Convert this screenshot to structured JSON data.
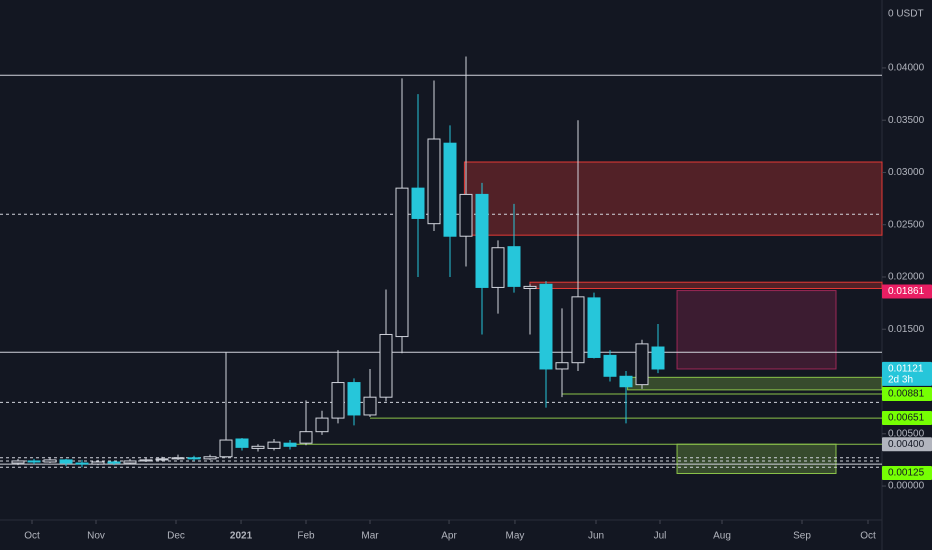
{
  "chart_data": {
    "type": "candlestick",
    "y_axis_label": "0 USDT",
    "up_color": "#d1d4dc",
    "down_color": "#26c6da",
    "series": {
      "open": [
        0.0022,
        0.0024,
        0.0023,
        0.0025,
        0.0022,
        0.0021,
        0.0023,
        0.0022,
        0.0024,
        0.0025,
        0.0026,
        0.0027,
        0.0026,
        0.0028,
        0.0045,
        0.0036,
        0.0036,
        0.0041,
        0.0041,
        0.0052,
        0.0065,
        0.0099,
        0.0068,
        0.0085,
        0.0143,
        0.0285,
        0.0251,
        0.0328,
        0.0239,
        0.0279,
        0.019,
        0.0229,
        0.0189,
        0.0193,
        0.0112,
        0.0118,
        0.018,
        0.0125,
        0.0105,
        0.0097,
        0.0133
      ],
      "high": [
        0.0026,
        0.0026,
        0.0027,
        0.0026,
        0.0025,
        0.0025,
        0.0024,
        0.0026,
        0.0027,
        0.0028,
        0.003,
        0.0029,
        0.003,
        0.0128,
        0.0046,
        0.004,
        0.0045,
        0.0044,
        0.0082,
        0.0072,
        0.013,
        0.0103,
        0.0112,
        0.0188,
        0.039,
        0.0375,
        0.0388,
        0.0345,
        0.0411,
        0.029,
        0.0235,
        0.027,
        0.0193,
        0.0196,
        0.017,
        0.035,
        0.0185,
        0.013,
        0.011,
        0.014,
        0.0155
      ],
      "low": [
        0.002,
        0.0021,
        0.0022,
        0.0019,
        0.0018,
        0.002,
        0.002,
        0.0021,
        0.0023,
        0.0024,
        0.0025,
        0.0024,
        0.0025,
        0.0027,
        0.0034,
        0.0033,
        0.0034,
        0.0035,
        0.0039,
        0.0049,
        0.006,
        0.0058,
        0.0066,
        0.0081,
        0.0127,
        0.02,
        0.0244,
        0.02,
        0.021,
        0.0145,
        0.0165,
        0.0185,
        0.0145,
        0.0075,
        0.0085,
        0.011,
        0.0122,
        0.01,
        0.006,
        0.0093,
        0.0108
      ],
      "close": [
        0.0024,
        0.0023,
        0.0025,
        0.0022,
        0.0021,
        0.0023,
        0.0022,
        0.0024,
        0.0025,
        0.0026,
        0.0027,
        0.0026,
        0.0028,
        0.0044,
        0.0037,
        0.0038,
        0.0042,
        0.0038,
        0.0052,
        0.0065,
        0.0099,
        0.0068,
        0.0085,
        0.0145,
        0.0285,
        0.0256,
        0.0332,
        0.0239,
        0.0279,
        0.019,
        0.0228,
        0.0191,
        0.0191,
        0.0112,
        0.0118,
        0.0181,
        0.0123,
        0.0105,
        0.0095,
        0.0136,
        0.0112
      ]
    },
    "xlim": [
      -1.125,
      54
    ],
    "xticks": [
      {
        "value": 0.875,
        "label": "Oct"
      },
      {
        "value": 4.875,
        "label": "Nov"
      },
      {
        "value": 9.875,
        "label": "Dec"
      },
      {
        "value": 13.94,
        "label": "2021"
      },
      {
        "value": 18,
        "label": "Feb"
      },
      {
        "value": 22,
        "label": "Mar"
      },
      {
        "value": 26.94,
        "label": "Apr"
      },
      {
        "value": 31.06,
        "label": "May"
      },
      {
        "value": 36.125,
        "label": "Jun"
      },
      {
        "value": 40.125,
        "label": "Jul"
      },
      {
        "value": 44,
        "label": "Aug"
      },
      {
        "value": 49,
        "label": "Sep"
      },
      {
        "value": 53.125,
        "label": "Oct"
      }
    ],
    "ylim": [
      -0.00325,
      0.0465
    ],
    "yticks": [
      {
        "value": 0.04,
        "label": "0.04000"
      },
      {
        "value": 0.035,
        "label": "0.03500"
      },
      {
        "value": 0.03,
        "label": "0.03000"
      },
      {
        "value": 0.025,
        "label": "0.02500"
      },
      {
        "value": 0.02,
        "label": "0.02000"
      },
      {
        "value": 0.015,
        "label": "0.01500"
      },
      {
        "value": 0.005,
        "label": "0.00500"
      },
      {
        "value": 0,
        "label": "0.00000"
      }
    ],
    "zones": [
      {
        "low": 0.024,
        "high": 0.031,
        "x_from": 27.9,
        "color": "#e53935"
      },
      {
        "low": 0.0189,
        "high": 0.0195,
        "x_from": 32,
        "color": "#e53935"
      },
      {
        "low": 0.0092,
        "high": 0.0104,
        "x_from": 38.1,
        "color": "#8bc34a"
      },
      {
        "low": 0.0112,
        "high": 0.0187,
        "x_from": 41.19,
        "x_to": 51.125,
        "color": "#9c2756"
      },
      {
        "low": 0.0012,
        "high": 0.004,
        "x_from": 41.19,
        "x_to": 51.125,
        "color": "#8bc34a"
      }
    ],
    "levels": [
      {
        "value": 0.0393,
        "style": "solid",
        "color": "#d1d4dc"
      },
      {
        "value": 0.026,
        "style": "dashed",
        "color": "#d1d4dc"
      },
      {
        "value": 0.0128,
        "style": "solid",
        "color": "#d1d4dc"
      },
      {
        "value": 0.008,
        "style": "dashed",
        "color": "#d1d4dc"
      },
      {
        "value": 0.0088,
        "style": "solid",
        "color": "#8bc34a",
        "x_from": 34
      },
      {
        "value": 0.0065,
        "style": "solid",
        "color": "#8bc34a",
        "x_from": 22
      },
      {
        "value": 0.004,
        "style": "solid",
        "color": "#8bc34a",
        "x_from": 17
      },
      {
        "value": 0.0027,
        "style": "dashed",
        "color": "#d1d4dc"
      },
      {
        "value": 0.0024,
        "style": "dashed",
        "color": "#d1d4dc"
      },
      {
        "value": 0.0021,
        "style": "solid",
        "color": "#d1d4dc"
      },
      {
        "value": 0.0018,
        "style": "dashed",
        "color": "#d1d4dc"
      }
    ],
    "price_labels": [
      {
        "value": 0.01861,
        "color": "#e91e63"
      },
      {
        "value": 0.01121,
        "color": "#26c6da",
        "sublabel": "2d 3h"
      },
      {
        "value": 0.00881,
        "color": "#76ff03"
      },
      {
        "value": 0.00651,
        "color": "#76ff03"
      },
      {
        "value": 0.004,
        "label": "0.00400",
        "color": "#b2b5be"
      },
      {
        "value": 0.00125,
        "color": "#76ff03"
      }
    ]
  }
}
